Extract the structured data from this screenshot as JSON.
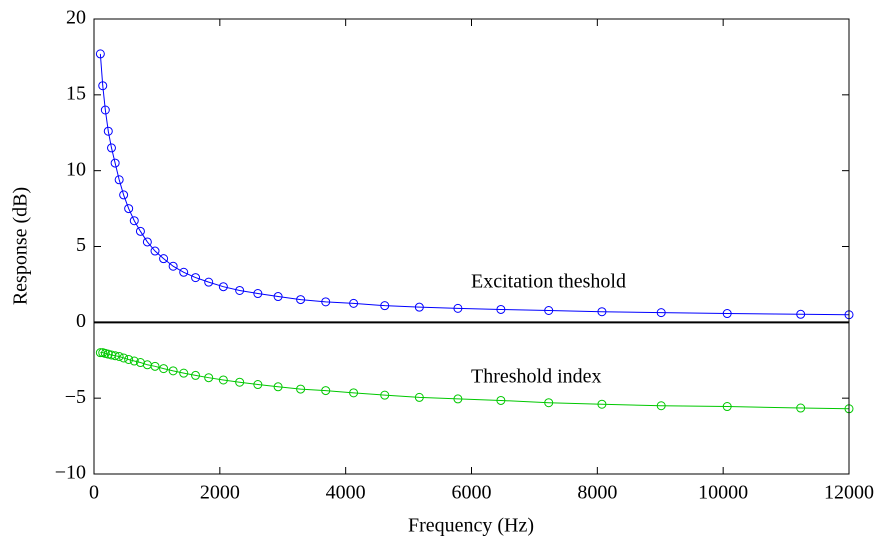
{
  "chart_data": {
    "type": "line",
    "xlabel": "Frequency (Hz)",
    "ylabel": "Response (dB)",
    "x": [
      101,
      139,
      180,
      227,
      278,
      336,
      400,
      471,
      551,
      640,
      738,
      848,
      970,
      1106,
      1258,
      1426,
      1614,
      1823,
      2056,
      2315,
      2604,
      2926,
      3284,
      3683,
      4126,
      4621,
      5171,
      5784,
      6467,
      7227,
      8073,
      9015,
      10064,
      11232,
      12000
    ],
    "series": [
      {
        "name": "Excitation theshold",
        "color": "#0000ff",
        "values": [
          17.7,
          15.6,
          14.0,
          12.6,
          11.5,
          10.5,
          9.4,
          8.4,
          7.5,
          6.7,
          6.0,
          5.3,
          4.7,
          4.2,
          3.7,
          3.3,
          2.95,
          2.65,
          2.35,
          2.1,
          1.9,
          1.7,
          1.5,
          1.35,
          1.25,
          1.1,
          1.0,
          0.92,
          0.85,
          0.78,
          0.7,
          0.64,
          0.58,
          0.53,
          0.5
        ]
      },
      {
        "name": "Threshold index",
        "color": "#00c800",
        "values": [
          -2.0,
          -2.0,
          -2.05,
          -2.1,
          -2.15,
          -2.2,
          -2.25,
          -2.35,
          -2.45,
          -2.55,
          -2.65,
          -2.8,
          -2.9,
          -3.05,
          -3.2,
          -3.35,
          -3.5,
          -3.65,
          -3.8,
          -3.95,
          -4.1,
          -4.25,
          -4.4,
          -4.5,
          -4.65,
          -4.8,
          -4.95,
          -5.05,
          -5.15,
          -5.3,
          -5.4,
          -5.5,
          -5.55,
          -5.65,
          -5.7
        ]
      }
    ],
    "xlim": [
      0,
      12000
    ],
    "xticks": [
      0,
      2000,
      4000,
      6000,
      8000,
      10000,
      12000
    ],
    "ylim": [
      -10,
      20
    ],
    "yticks": [
      {
        "value": -10,
        "label": "−10"
      },
      {
        "value": -5,
        "label": "−5"
      },
      0,
      5,
      10,
      15,
      20
    ],
    "divider": 0,
    "grid": false
  }
}
